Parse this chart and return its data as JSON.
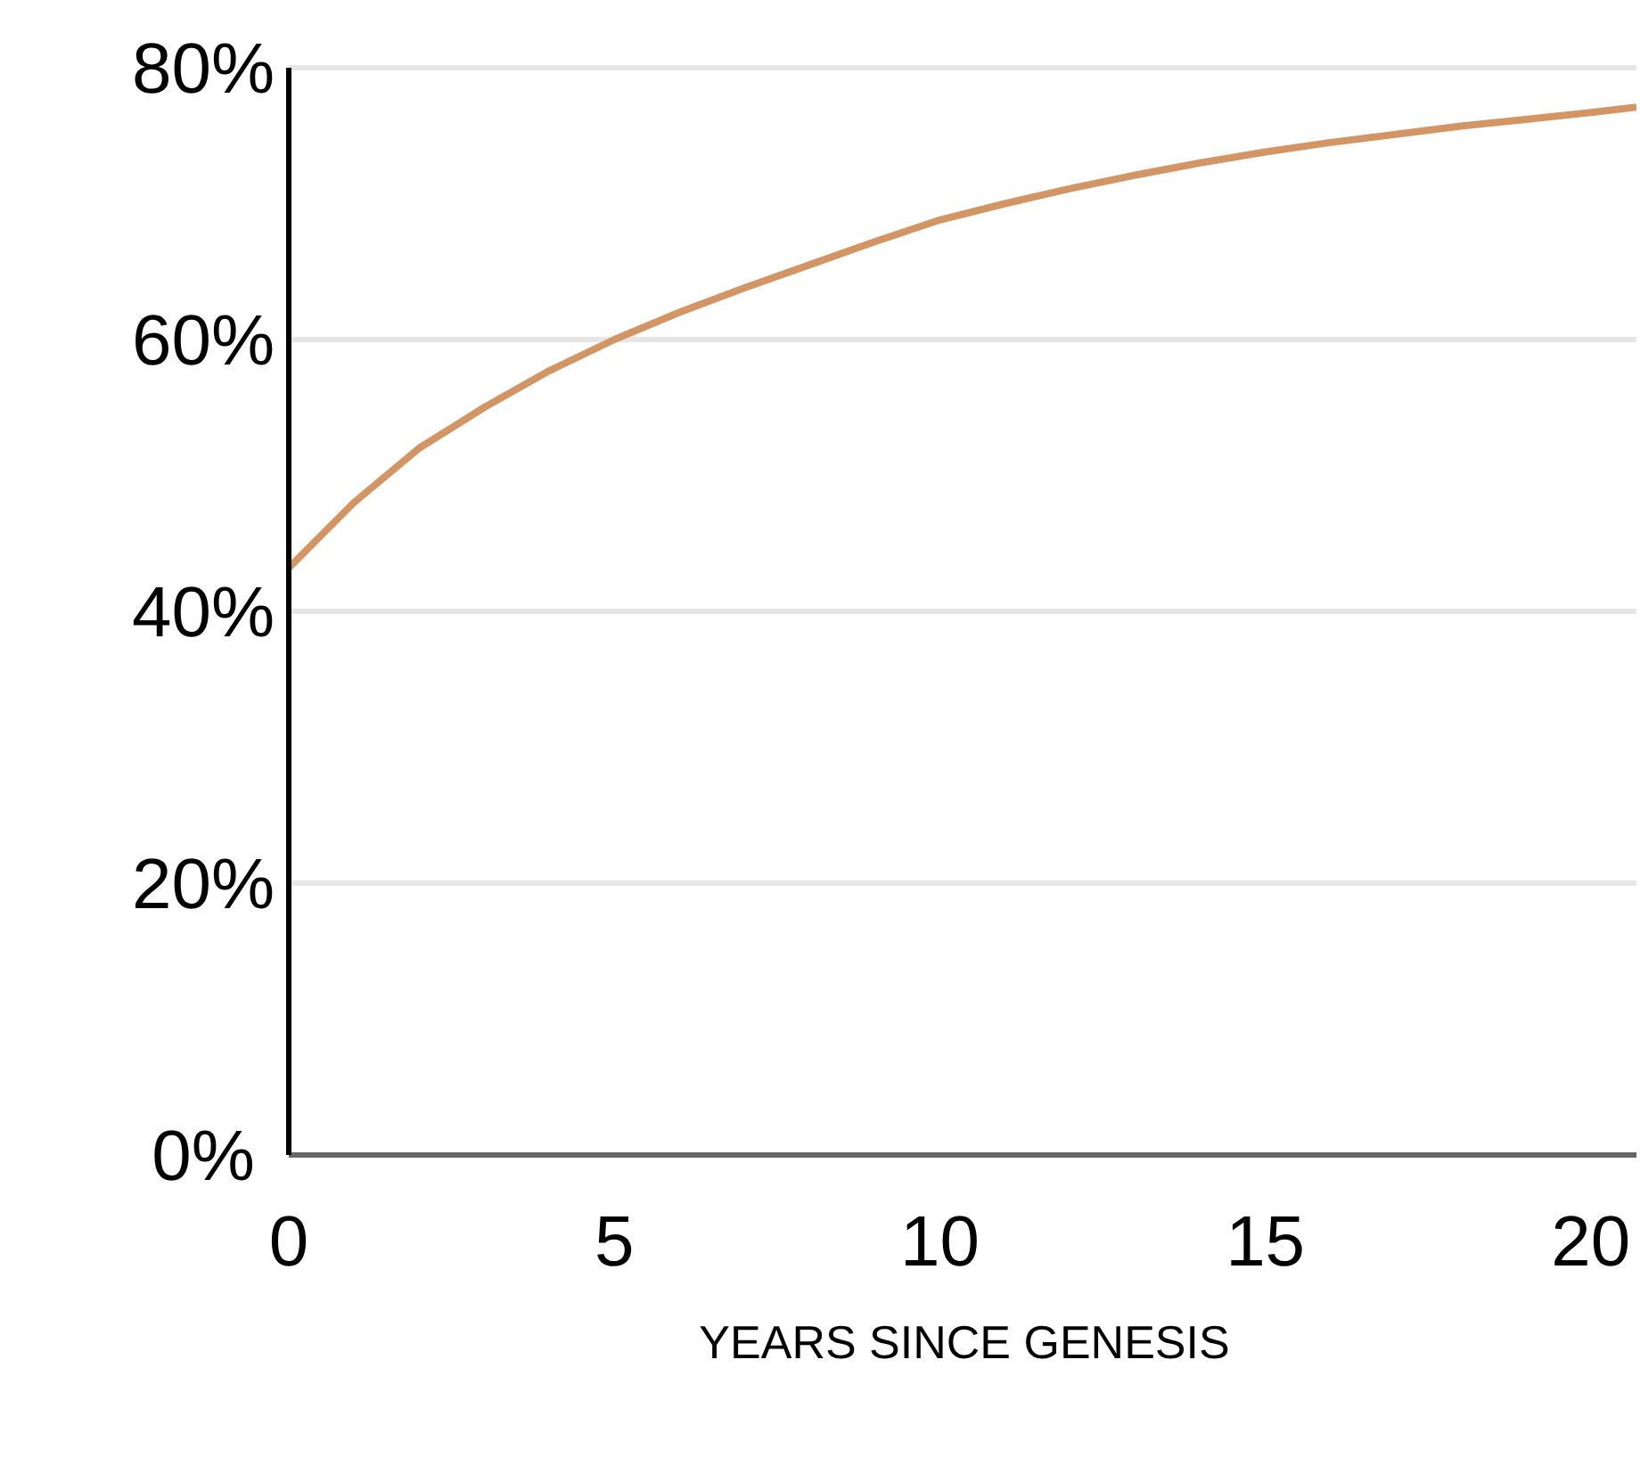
{
  "chart_data": {
    "type": "line",
    "xlabel": "YEARS SINCE GENESIS",
    "x": [
      0,
      1,
      2,
      3,
      4,
      5,
      6,
      7,
      8,
      9,
      10,
      11,
      12,
      13,
      14,
      15,
      16,
      17,
      18,
      19,
      20,
      20.7
    ],
    "series": [
      {
        "color": "#d39563",
        "values": [
          43.2,
          48,
          52,
          55,
          57.7,
          60,
          62,
          63.8,
          65.5,
          67.2,
          68.8,
          70,
          71.1,
          72.1,
          73,
          73.8,
          74.5,
          75.1,
          75.7,
          76.2,
          76.7,
          77.1
        ]
      }
    ],
    "xlim": [
      0,
      20.7
    ],
    "xticks": [
      0,
      5,
      10,
      15,
      20
    ],
    "ylim": [
      0,
      80
    ],
    "yticks": [
      {
        "value": 0,
        "label": "0%"
      },
      {
        "value": 20,
        "label": "20%"
      },
      {
        "value": 40,
        "label": "40%"
      },
      {
        "value": 60,
        "label": "60%"
      },
      {
        "value": 80,
        "label": "80%"
      }
    ],
    "grid": "y",
    "legend": false,
    "marker": "none",
    "line_style": "solid"
  }
}
